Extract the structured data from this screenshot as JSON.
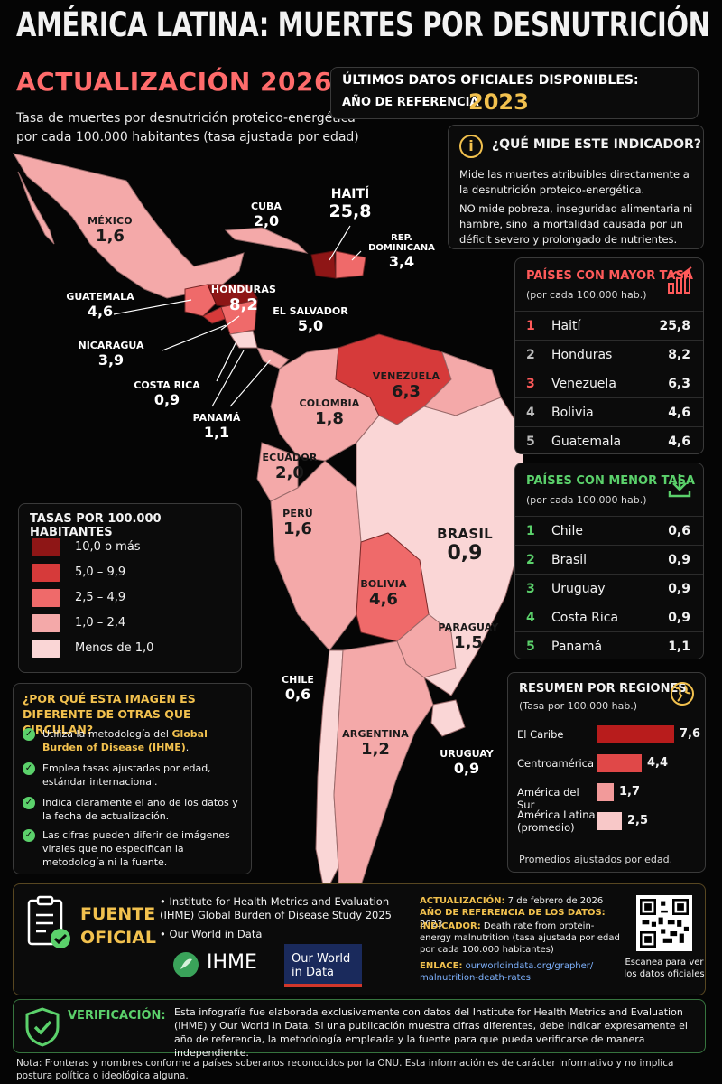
{
  "header": {
    "title": "AMÉRICA LATINA: MUERTES POR DESNUTRICIÓN",
    "subtitle": "ACTUALIZACIÓN 2026",
    "description": "Tasa de muertes por desnutrición proteico-energética por cada 100.000 habitantes (tasa ajustada por edad)",
    "ref_line1": "ÚLTIMOS DATOS OFICIALES DISPONIBLES:",
    "ref_line2": "AÑO DE REFERENCIA",
    "ref_year": "2023"
  },
  "info": {
    "title": "¿QUÉ MIDE ESTE INDICADOR?",
    "p1": "Mide las muertes atribuibles directamente a la desnutrición proteico-energética.",
    "p2": "NO mide pobreza, inseguridad alimentaria ni hambre, sino la mortalidad causada por un déficit severo y prolongado de nutrientes.",
    "icon": "info-icon"
  },
  "map": {
    "countries": [
      {
        "name": "MÉXICO",
        "value": "1,6"
      },
      {
        "name": "CUBA",
        "value": "2,0"
      },
      {
        "name": "HAITÍ",
        "value": "25,8"
      },
      {
        "name": "REP. DOMINICANA",
        "value": "3,4"
      },
      {
        "name": "GUATEMALA",
        "value": "4,6"
      },
      {
        "name": "HONDURAS",
        "value": "8,2"
      },
      {
        "name": "EL SALVADOR",
        "value": "5,0"
      },
      {
        "name": "NICARAGUA",
        "value": "3,9"
      },
      {
        "name": "COSTA RICA",
        "value": "0,9"
      },
      {
        "name": "PANAMÁ",
        "value": "1,1"
      },
      {
        "name": "VENEZUELA",
        "value": "6,3"
      },
      {
        "name": "COLOMBIA",
        "value": "1,8"
      },
      {
        "name": "ECUADOR",
        "value": "2,0"
      },
      {
        "name": "PERÚ",
        "value": "1,6"
      },
      {
        "name": "BRASIL",
        "value": "0,9"
      },
      {
        "name": "BOLIVIA",
        "value": "4,6"
      },
      {
        "name": "PARAGUAY",
        "value": "1,5"
      },
      {
        "name": "CHILE",
        "value": "0,6"
      },
      {
        "name": "ARGENTINA",
        "value": "1,2"
      },
      {
        "name": "URUGUAY",
        "value": "0,9"
      }
    ]
  },
  "legend": {
    "title": "TASAS POR 100.000 HABITANTES",
    "items": [
      {
        "label": "10,0 o más",
        "color": "#8e1616"
      },
      {
        "label": "5,0 – 9,9",
        "color": "#d63a3a"
      },
      {
        "label": "2,5 – 4,9",
        "color": "#ef6a6a"
      },
      {
        "label": "1,0 – 2,4",
        "color": "#f4a9a9"
      },
      {
        "label": "Menos de 1,0",
        "color": "#fad6d6"
      }
    ]
  },
  "top": {
    "title": "PAÍSES CON MAYOR TASA",
    "subtitle": "(por cada 100.000 hab.)",
    "icon": "bar-chart-up-icon",
    "rows": [
      {
        "rank": "1",
        "name": "Haití",
        "value": "25,8"
      },
      {
        "rank": "2",
        "name": "Honduras",
        "value": "8,2"
      },
      {
        "rank": "3",
        "name": "Venezuela",
        "value": "6,3"
      },
      {
        "rank": "4",
        "name": "Bolivia",
        "value": "4,6"
      },
      {
        "rank": "5",
        "name": "Guatemala",
        "value": "4,6"
      }
    ]
  },
  "low": {
    "title": "PAÍSES CON MENOR TASA",
    "subtitle": "(por cada 100.000 hab.)",
    "icon": "download-arrow-icon",
    "rows": [
      {
        "rank": "1",
        "name": "Chile",
        "value": "0,6"
      },
      {
        "rank": "2",
        "name": "Brasil",
        "value": "0,9"
      },
      {
        "rank": "3",
        "name": "Uruguay",
        "value": "0,9"
      },
      {
        "rank": "4",
        "name": "Costa Rica",
        "value": "0,9"
      },
      {
        "rank": "5",
        "name": "Panamá",
        "value": "1,1"
      }
    ]
  },
  "regions": {
    "title": "RESUMEN POR REGIONES",
    "subtitle": "(Tasa por 100.000 hab.)",
    "icon": "globe-icon",
    "items": [
      {
        "name": "El Caribe",
        "value": "7,6",
        "num": 7.6,
        "color": "#b81c1c"
      },
      {
        "name": "Centroamérica",
        "value": "4,4",
        "num": 4.4,
        "color": "#e04848"
      },
      {
        "name": "América del Sur",
        "value": "1,7",
        "num": 1.7,
        "color": "#f29a9a"
      },
      {
        "name": "América Latina (promedio)",
        "value": "2,5",
        "num": 2.5,
        "color": "#f8c8c8"
      }
    ],
    "note": "Promedios ajustados por edad."
  },
  "why": {
    "title": "¿POR QUÉ ESTA IMAGEN ES DIFERENTE DE OTRAS QUE CIRCULAN?",
    "item1_a": "Utiliza la metodología del ",
    "item1_b": "Global Burden of Disease (IHME)",
    "item1_c": ".",
    "item2": "Emplea tasas ajustadas por edad, estándar internacional.",
    "item3": "Indica claramente el año de los datos y la fecha de actualización.",
    "item4": "Las cifras pueden diferir de imágenes virales que no especifican la metodología ni la fuente."
  },
  "source": {
    "label_line1": "FUENTE",
    "label_line2": "OFICIAL",
    "bullet1": "Institute for Health Metrics and Evaluation (IHME) Global Burden of Disease Study 2025",
    "bullet2": "Our World in Data",
    "ihme_logo": "IHME",
    "owid_logo": "Our World in Data",
    "update_label": "ACTUALIZACIÓN:",
    "update_value": "7 de febrero de 2026",
    "refyear_label": "AÑO DE REFERENCIA DE LOS DATOS:",
    "refyear_value": "2023",
    "indicator_label": "INDICADOR:",
    "indicator_value": "Death rate from protein-energy malnutrition (tasa ajustada por edad por cada 100.000 habitantes)",
    "link_label": "ENLACE:",
    "link_value": "ourworldindata.org/grapher/ malnutrition-death-rates",
    "qr_caption": "Escanea para ver los datos oficiales"
  },
  "verification": {
    "label": "VERIFICACIÓN:",
    "text": "Esta infografía fue elaborada exclusivamente con datos del Institute for Health Metrics and Evaluation (IHME) y Our World in Data. Si una publicación muestra cifras diferentes, debe indicar expresamente el año de referencia, la metodología empleada y la fuente para que pueda verificarse de manera independiente."
  },
  "footnote": "Nota: Fronteras y nombres conforme a países soberanos reconocidos por la ONU. Esta información es de carácter informativo y no implica postura política o ideológica alguna."
}
